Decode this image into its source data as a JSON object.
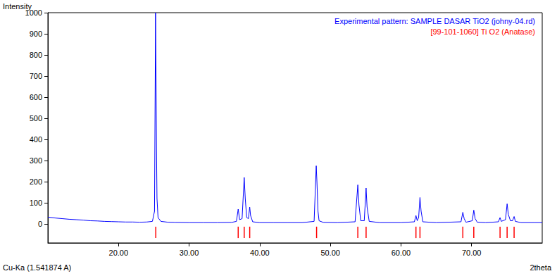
{
  "chart_data": {
    "type": "line",
    "ylabel": "Intensity",
    "xlabel": "2theta",
    "annotations": [
      "Cu-Ka (1.541874 A)"
    ],
    "legend": "upper right",
    "grid": false,
    "xlim": [
      10,
      80
    ],
    "xticks": [
      {
        "value": 20,
        "label": "20.00"
      },
      {
        "value": 30,
        "label": "30.00"
      },
      {
        "value": 40,
        "label": "40.00"
      },
      {
        "value": 50,
        "label": "50.00"
      },
      {
        "value": 60,
        "label": "60.00"
      },
      {
        "value": 70,
        "label": "70.00"
      }
    ],
    "ylim": [
      -90,
      1000
    ],
    "yticks": [
      0,
      100,
      200,
      300,
      400,
      500,
      600,
      700,
      800,
      900,
      1000
    ],
    "series": [
      {
        "name": "Experimental pattern: SAMPLE DASAR TiO2 (johny-04.rd)",
        "color": "#0000ff",
        "type": "line",
        "x": [
          10,
          11,
          12,
          13,
          14,
          15,
          16,
          17,
          18,
          19,
          20,
          21,
          22,
          23,
          24,
          24.8,
          25.1,
          25.25,
          25.32,
          25.38,
          25.45,
          25.6,
          26,
          27,
          28,
          30,
          32,
          34,
          36,
          36.7,
          36.95,
          37.15,
          37.5,
          37.8,
          37.95,
          38.15,
          38.4,
          38.58,
          38.7,
          39,
          40,
          42,
          44,
          46,
          47.7,
          48.0,
          48.1,
          48.25,
          48.4,
          49,
          51,
          53.5,
          53.89,
          54.05,
          54.3,
          54.8,
          55.06,
          55.2,
          55.5,
          57,
          60,
          61.9,
          62.12,
          62.3,
          62.5,
          62.69,
          62.85,
          63.1,
          65,
          68.5,
          68.76,
          68.95,
          69.2,
          70.1,
          70.31,
          70.5,
          70.8,
          72,
          73.8,
          74.03,
          74.2,
          74.8,
          75.03,
          75.2,
          75.5,
          75.8,
          76.02,
          76.2,
          77,
          79,
          80
        ],
        "values": [
          32,
          28,
          25,
          22,
          20,
          18,
          15,
          14,
          12,
          11,
          10,
          9,
          9,
          8,
          9,
          12,
          60,
          1000,
          1000,
          360,
          120,
          30,
          12,
          8,
          7,
          6,
          6,
          6,
          7,
          12,
          70,
          20,
          25,
          220,
          120,
          30,
          25,
          80,
          40,
          10,
          6,
          6,
          6,
          6,
          12,
          275,
          200,
          60,
          15,
          7,
          6,
          10,
          185,
          90,
          15,
          15,
          170,
          80,
          12,
          6,
          6,
          10,
          40,
          15,
          30,
          125,
          60,
          10,
          6,
          10,
          55,
          25,
          8,
          15,
          65,
          25,
          8,
          6,
          10,
          30,
          12,
          20,
          95,
          45,
          15,
          15,
          35,
          12,
          6,
          6,
          6
        ]
      },
      {
        "name": "[99-101-1060] Ti O2 (Anatase)",
        "color": "#ff0000",
        "type": "sticks",
        "x": [
          25.28,
          36.95,
          37.8,
          38.58,
          48.05,
          53.89,
          55.06,
          62.12,
          62.69,
          68.76,
          70.31,
          74.03,
          75.03,
          76.02
        ],
        "stick_range": [
          -13,
          -67
        ]
      }
    ]
  }
}
